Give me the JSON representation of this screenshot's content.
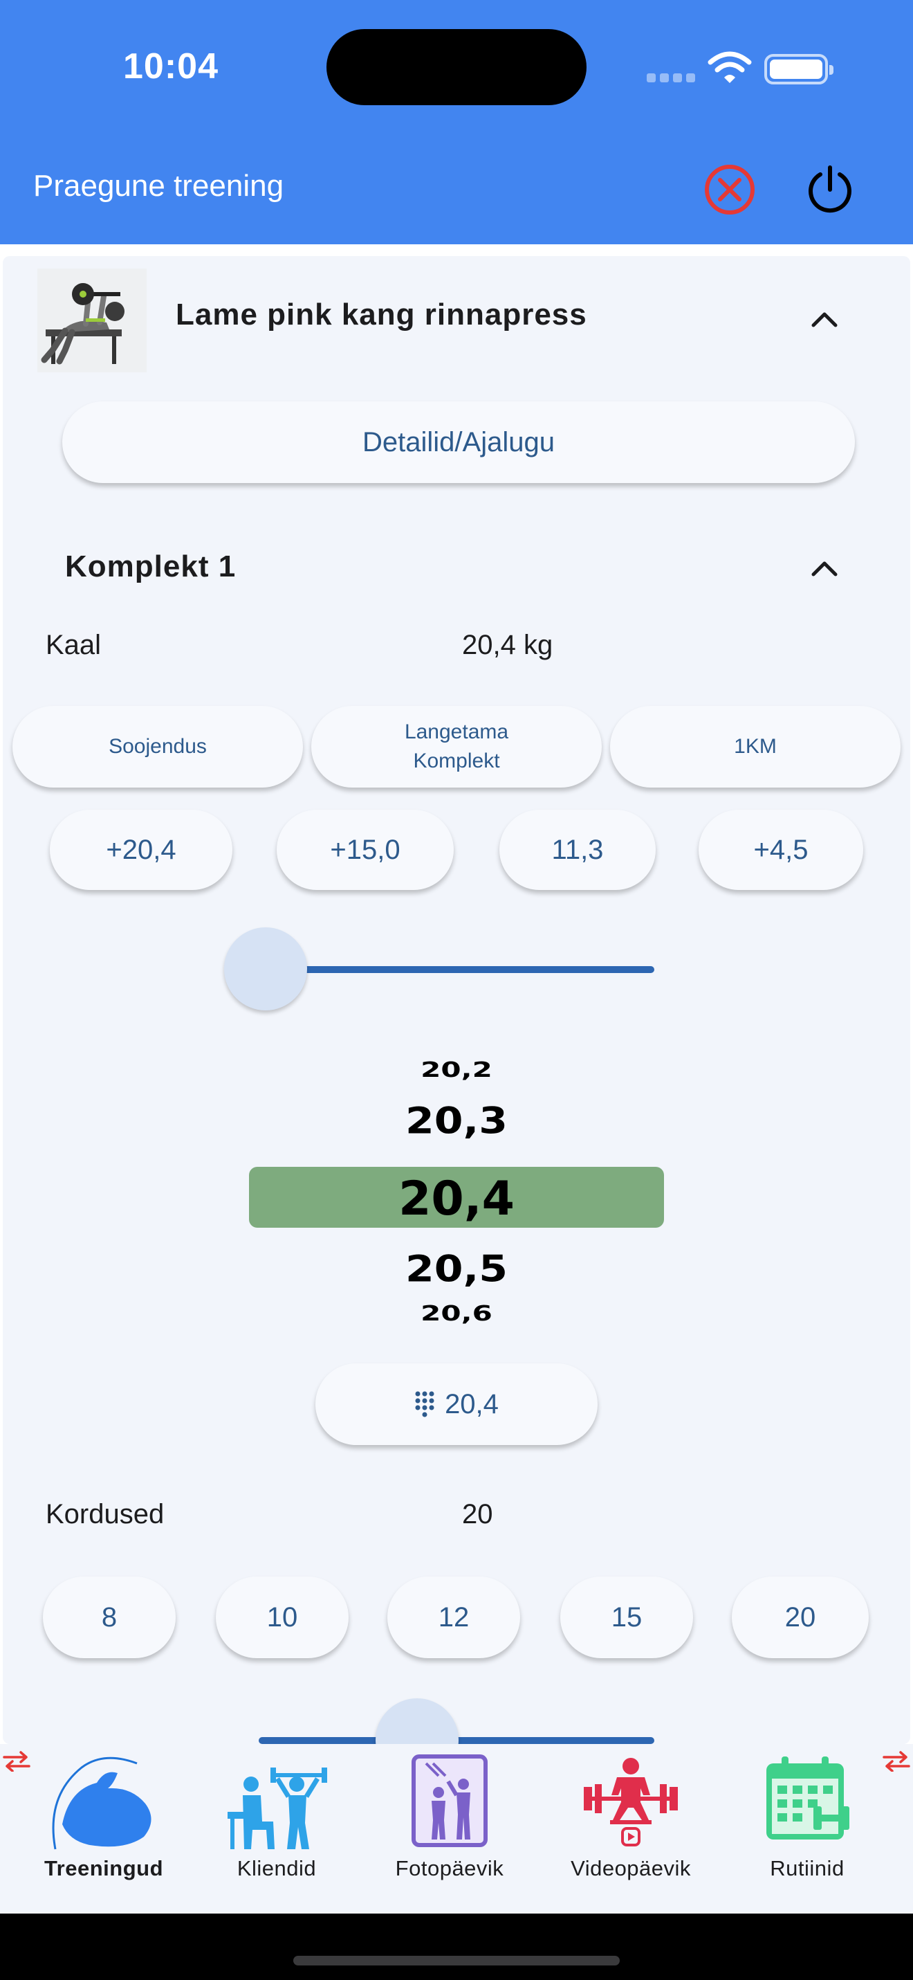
{
  "status_bar": {
    "time": "10:04"
  },
  "header": {
    "title": "Praegune treening"
  },
  "exercise": {
    "name": "Lame pink kang rinnapress",
    "details_label": "Detailid/Ajalugu"
  },
  "set": {
    "title": "Komplekt 1",
    "weight_label": "Kaal",
    "weight_value": "20,4 kg",
    "modes": [
      {
        "label": "Soojendus"
      },
      {
        "label_line1": "Langetama",
        "label_line2": "Komplekt"
      },
      {
        "label": "1KM"
      }
    ],
    "increments": [
      "+20,4",
      "+15,0",
      "11,3",
      "+4,5"
    ],
    "weight_slider_fraction": 0.0,
    "picker": [
      "20,2",
      "20,3",
      "20,4",
      "20,5",
      "20,6"
    ],
    "picker_selected": "20,4",
    "manual_value": "20,4",
    "reps_label": "Kordused",
    "reps_value": "20",
    "rep_options": [
      "8",
      "10",
      "12",
      "15",
      "20"
    ],
    "reps_slider_fraction": 0.4
  },
  "nav": [
    {
      "label": "Treeningud",
      "icon": "biceps-icon",
      "active": true
    },
    {
      "label": "Kliendid",
      "icon": "trainer-client-icon",
      "active": false
    },
    {
      "label": "Fotopäevik",
      "icon": "mirror-photo-icon",
      "active": false
    },
    {
      "label": "Videopäevik",
      "icon": "weightlifter-video-icon",
      "active": false
    },
    {
      "label": "Rutiinid",
      "icon": "calendar-dumbbell-icon",
      "active": false
    }
  ],
  "colors": {
    "header": "#4285f0",
    "accent": "#2d66b2",
    "picker_highlight": "#7eab7e",
    "cancel": "#e53935"
  }
}
